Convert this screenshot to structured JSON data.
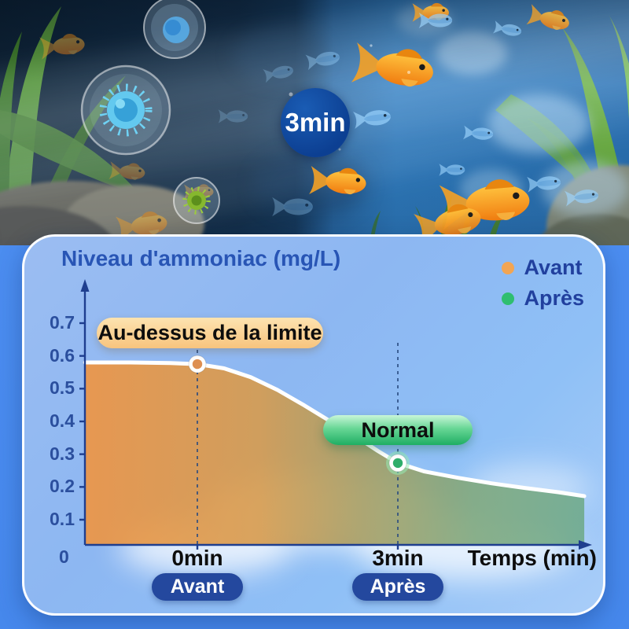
{
  "scene": {
    "badge_label": "3min",
    "description_elements": [
      "aquarium-before-after",
      "bacteria-bubbles-left",
      "goldfish-right"
    ]
  },
  "card": {
    "title": "Niveau d'ammoniac (mg/L)",
    "legend": [
      {
        "label": "Avant",
        "color": "#F2A553"
      },
      {
        "label": "Après",
        "color": "#2FBE70"
      }
    ],
    "annotation_limit": "Au-dessus de la limite",
    "annotation_normal": "Normal",
    "axis": {
      "origin_label": "0",
      "x_tick_labels": [
        "0min",
        "3min"
      ],
      "x_axis_label": "Temps (min)",
      "y_tick_labels": [
        "0.7",
        "0.6",
        "0.5",
        "0.4",
        "0.3",
        "0.2",
        "0.1"
      ]
    },
    "x_badges": [
      "Avant",
      "Après"
    ]
  },
  "chart_data": {
    "type": "area",
    "title": "Niveau d'ammoniac (mg/L)",
    "xlabel": "Temps (min)",
    "ylabel": "mg/L",
    "ylim": [
      0,
      0.75
    ],
    "y_ticks": [
      0.1,
      0.2,
      0.3,
      0.4,
      0.5,
      0.6,
      0.7
    ],
    "x_ticks_min": [
      0,
      3
    ],
    "grid": false,
    "legend_position": "top-right",
    "markers": [
      {
        "t_min": 0,
        "value": 0.575,
        "label": "Avant",
        "color": "#DE8F51",
        "annotation": "Au-dessus de la limite"
      },
      {
        "t_min": 3,
        "value": 0.273,
        "label": "Après",
        "color": "#2FAE6A",
        "annotation": "Normal"
      }
    ],
    "curve_samples": [
      [
        -1.68,
        0.58
      ],
      [
        -1.0,
        0.58
      ],
      [
        -0.4,
        0.578
      ],
      [
        0,
        0.575
      ],
      [
        0.4,
        0.562
      ],
      [
        0.8,
        0.535
      ],
      [
        1.2,
        0.496
      ],
      [
        1.6,
        0.449
      ],
      [
        2.0,
        0.399
      ],
      [
        2.4,
        0.35
      ],
      [
        2.7,
        0.31
      ],
      [
        3.0,
        0.273
      ],
      [
        3.4,
        0.247
      ],
      [
        3.9,
        0.228
      ],
      [
        4.4,
        0.211
      ],
      [
        4.9,
        0.197
      ],
      [
        5.4,
        0.184
      ],
      [
        5.79,
        0.172
      ]
    ],
    "x_origin_offset_min": -1.68,
    "x_end_min": 5.79,
    "area_gradient": [
      "#F09440",
      "#A89E63",
      "#6FAA8C"
    ]
  },
  "colors": {
    "badge_blue": "#0C3F92",
    "navy_axis": "#1E3E8F",
    "title_blue": "#2855B5",
    "pill_navy": "#24489E",
    "pill_orange_bg": "#F8C47E",
    "pill_green_bg": "#1FAE63",
    "card_bg": "#8FB9F2",
    "outer_blue": "#4B8DF0"
  }
}
